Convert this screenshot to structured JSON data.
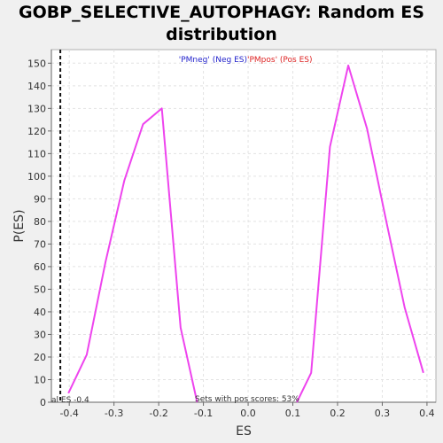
{
  "chart_data": {
    "type": "line",
    "title_line1": "GOBP_SELECTIVE_AUTOPHAGY: Random ES",
    "title_line2": "distribution",
    "xlabel": "ES",
    "ylabel": "P(ES)",
    "xlim": [
      -0.44,
      0.42
    ],
    "ylim": [
      0,
      156
    ],
    "xticks": [
      -0.4,
      -0.3,
      -0.2,
      -0.1,
      0.0,
      0.1,
      0.2,
      0.3,
      0.4
    ],
    "xtick_labels": [
      "-0.4",
      "-0.3",
      "-0.2",
      "-0.1",
      "0.0",
      "0.1",
      "0.2",
      "0.3",
      "0.4"
    ],
    "yticks": [
      0,
      10,
      20,
      30,
      40,
      50,
      60,
      70,
      80,
      90,
      100,
      110,
      120,
      130,
      140,
      150
    ],
    "grid": true,
    "series": [
      {
        "name": "'PMneg' (Neg ES)",
        "color": "#ee44ee",
        "x": [
          -0.402,
          -0.361,
          -0.319,
          -0.277,
          -0.235,
          -0.193,
          -0.151,
          -0.114
        ],
        "y": [
          4,
          21,
          62,
          98,
          123,
          130,
          33,
          0
        ]
      },
      {
        "name": "'PMpos' (Pos ES)",
        "color": "#ee44ee",
        "x": [
          0.109,
          0.141,
          0.183,
          0.224,
          0.266,
          0.308,
          0.35,
          0.392
        ],
        "y": [
          0,
          13,
          113,
          149,
          121,
          81,
          42,
          13
        ]
      }
    ],
    "actual_es": {
      "x": -0.42,
      "label": "al ES -0.4"
    },
    "annotation": "Sets with pos scores: 53%",
    "legend": [
      {
        "text": "'PMneg' (Neg ES)",
        "color": "#2222cc"
      },
      {
        "text": "'PMpos' (Pos ES)",
        "color": "#dd2222"
      }
    ],
    "legend_position": "top-center"
  }
}
